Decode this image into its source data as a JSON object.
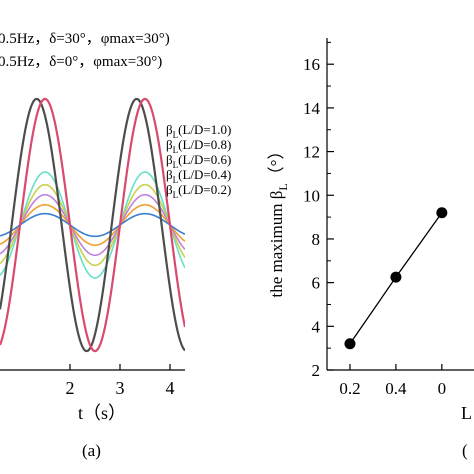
{
  "chart_data": [
    {
      "type": "line",
      "panel_label": "(a)",
      "xlabel": "t（s）",
      "x_ticks": [
        "2",
        "3",
        "4"
      ],
      "xlim": [
        0.6,
        4.3
      ],
      "ylim": [
        -1.15,
        1.15
      ],
      "header_legend": [
        "0.5Hz，δ=30°，φmax=30°)",
        "0.5Hz，δ=0°，φmax=30°)"
      ],
      "series": [
        {
          "name": "0.5Hz，δ=30°，φmax=30°)",
          "color": "#4d4d4d",
          "amplitude": 1.0,
          "phase_deg": 30,
          "period_s": 2.0,
          "samples": [
            {
              "t": 1.75,
              "v": -0.22
            },
            {
              "t": 2.33,
              "v": 1.0
            },
            {
              "t": 3.33,
              "v": -1.0
            },
            {
              "t": 4.0,
              "v": 0.37
            }
          ]
        },
        {
          "name": "0.5Hz，δ=0°，φmax=30°)",
          "color": "#d94a6e",
          "amplitude": 1.0,
          "phase_deg": 0,
          "period_s": 2.0,
          "samples": [
            {
              "t": 1.5,
              "v": -0.71
            },
            {
              "t": 2.5,
              "v": 1.0
            },
            {
              "t": 3.5,
              "v": -1.0
            },
            {
              "t": 4.0,
              "v": 0.0
            }
          ]
        },
        {
          "name": "βL(L/D=1.0)",
          "color": "#66e0c8",
          "amplitude": 0.42,
          "phase_deg": 0,
          "period_s": 2.0
        },
        {
          "name": "βL(L/D=0.8)",
          "color": "#c8d24a",
          "amplitude": 0.32,
          "phase_deg": 0,
          "period_s": 2.0
        },
        {
          "name": "βL(L/D=0.6)",
          "color": "#c080e0",
          "amplitude": 0.24,
          "phase_deg": 0,
          "period_s": 2.0
        },
        {
          "name": "βL(L/D=0.4)",
          "color": "#f0a030",
          "amplitude": 0.16,
          "phase_deg": 0,
          "period_s": 2.0
        },
        {
          "name": "βL(L/D=0.2)",
          "color": "#3a7fd0",
          "amplitude": 0.09,
          "phase_deg": 0,
          "period_s": 2.0
        }
      ],
      "legend": [
        {
          "label": "βL(L/D=1.0)"
        },
        {
          "label": "βL(L/D=0.8)"
        },
        {
          "label": "βL(L/D=0.6)"
        },
        {
          "label": "βL(L/D=0.4)"
        },
        {
          "label": "βL(L/D=0.2)"
        }
      ]
    },
    {
      "type": "line",
      "panel_label": "(",
      "ylabel": "the maximum βL（°）",
      "xlabel": "L",
      "x_ticks": [
        "0.2",
        "0.4",
        "0"
      ],
      "y_ticks": [
        "2",
        "4",
        "6",
        "8",
        "10",
        "12",
        "14",
        "16"
      ],
      "xlim": [
        0.1,
        0.74
      ],
      "ylim": [
        2,
        17.2
      ],
      "markers": true,
      "points": [
        {
          "x": 0.2,
          "y": 3.2
        },
        {
          "x": 0.4,
          "y": 6.25
        },
        {
          "x": 0.6,
          "y": 9.2
        }
      ]
    }
  ]
}
